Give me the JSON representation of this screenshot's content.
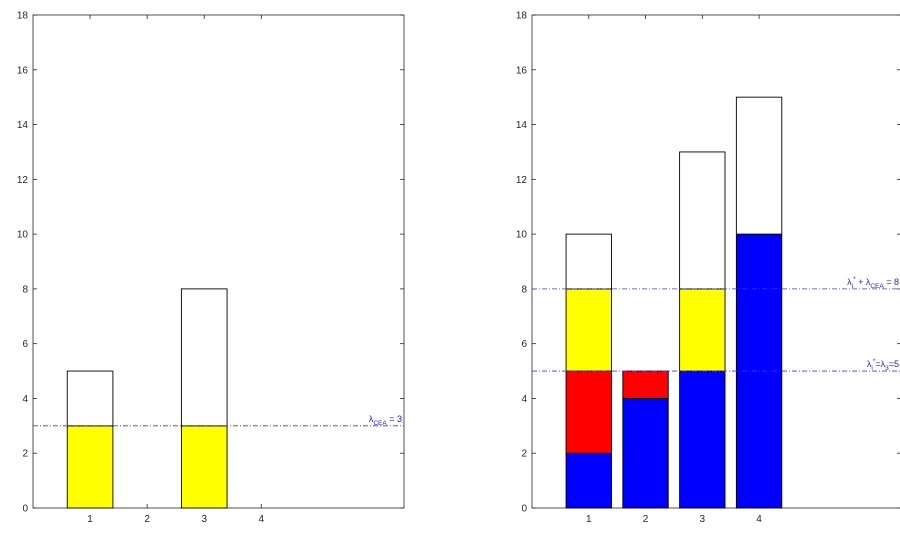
{
  "chart_data": [
    {
      "type": "bar",
      "stacked": true,
      "categories": [
        "1",
        "2",
        "3",
        "4"
      ],
      "ylim": [
        0,
        18
      ],
      "xlim": [
        0,
        6.5
      ],
      "yticks": [
        "0",
        "2",
        "4",
        "6",
        "8",
        "10",
        "12",
        "14",
        "16",
        "18"
      ],
      "xticks": [
        "1",
        "2",
        "3",
        "4"
      ],
      "grid": false,
      "series": [
        {
          "values": [
            3,
            0,
            3,
            0
          ],
          "color": "#ffff00"
        },
        {
          "values": [
            2,
            0,
            5,
            0
          ],
          "color": "#ffffff"
        }
      ],
      "reference_lines": [
        {
          "y": 3,
          "label": "λ",
          "label_sub": "CEA",
          "label_sup": "",
          "label_rest": "",
          "label_rest_sub": "",
          "label_tail": " = 3",
          "color": "#3a3aff"
        }
      ]
    },
    {
      "type": "bar",
      "stacked": true,
      "categories": [
        "1",
        "2",
        "3",
        "4"
      ],
      "ylim": [
        0,
        18
      ],
      "xlim": [
        0,
        6.5
      ],
      "yticks": [
        "0",
        "2",
        "4",
        "6",
        "8",
        "10",
        "12",
        "14",
        "16",
        "18"
      ],
      "xticks": [
        "1",
        "2",
        "3",
        "4"
      ],
      "grid": false,
      "series": [
        {
          "values": [
            2,
            4,
            5,
            10
          ],
          "color": "#0000ff"
        },
        {
          "values": [
            3,
            1,
            0,
            0
          ],
          "color": "#ff0000"
        },
        {
          "values": [
            3,
            0,
            3,
            0
          ],
          "color": "#ffff00"
        },
        {
          "values": [
            2,
            0,
            5,
            5
          ],
          "color": "#ffffff"
        }
      ],
      "reference_lines": [
        {
          "y": 8,
          "label": "λ",
          "label_sub": "i",
          "label_sup": "*",
          "label_rest": " + λ",
          "label_rest_sub": "CEA",
          "label_tail": " = 8",
          "color": "#3a3aff"
        },
        {
          "y": 5,
          "label": "λ",
          "label_sub": "i",
          "label_sup": "*",
          "label_rest": "=λ",
          "label_rest_sub": "3",
          "label_tail": "=5",
          "color": "#3a3aff"
        }
      ]
    }
  ]
}
